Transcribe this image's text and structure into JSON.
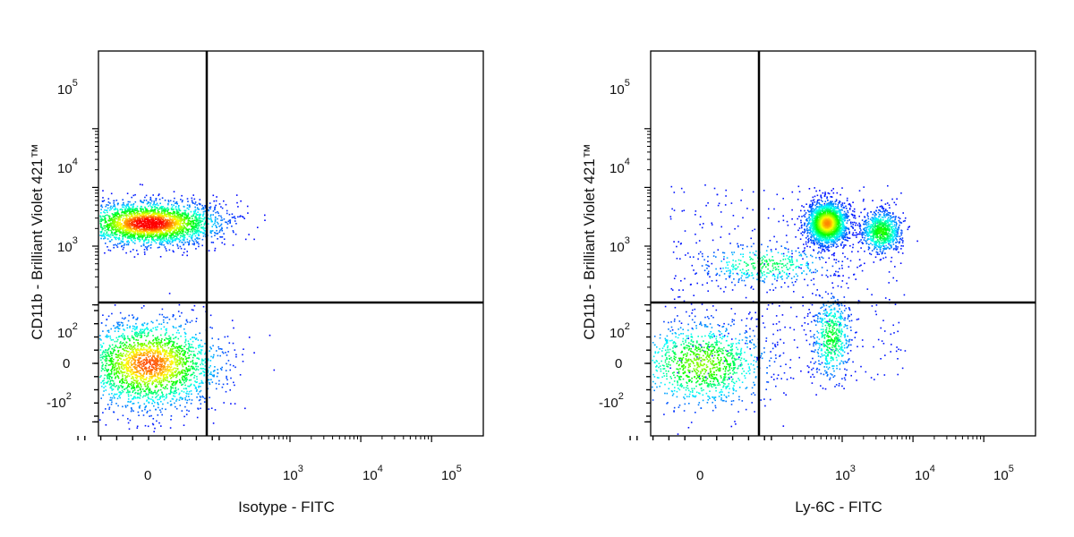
{
  "chart_data": [
    {
      "type": "scatter",
      "subtype": "flow-cytometry-density-dot-plot",
      "xlabel": "Isotype - FITC",
      "ylabel": "CD11b - Brilliant Violet 421™",
      "x_scale": "biexponential",
      "y_scale": "biexponential",
      "x_ticks": [
        "0",
        "10^3",
        "10^4",
        "10^5"
      ],
      "y_ticks": [
        "-10^2",
        "0",
        "10^2",
        "10^3",
        "10^4",
        "10^5"
      ],
      "quadrant_gate": {
        "x": 180,
        "y": 190
      },
      "grid": false,
      "color_scale": [
        "#0000ff",
        "#00ffff",
        "#00ff00",
        "#ffff00",
        "#ff0000"
      ],
      "populations": [
        {
          "x": 0,
          "y": 2500,
          "approx_fraction": 0.55
        },
        {
          "x": 0,
          "y": 0,
          "approx_fraction": 0.45
        }
      ]
    },
    {
      "type": "scatter",
      "subtype": "flow-cytometry-density-dot-plot",
      "xlabel": "Ly-6C - FITC",
      "ylabel": "CD11b - Brilliant Violet 421™",
      "x_scale": "biexponential",
      "y_scale": "biexponential",
      "x_ticks": [
        "0",
        "10^3",
        "10^4",
        "10^5"
      ],
      "y_ticks": [
        "-10^2",
        "0",
        "10^2",
        "10^3",
        "10^4",
        "10^5"
      ],
      "quadrant_gate": {
        "x": 180,
        "y": 190
      },
      "grid": false,
      "color_scale": [
        "#0000ff",
        "#00ffff",
        "#00ff00",
        "#ffff00",
        "#ff0000"
      ],
      "populations": [
        {
          "x": 600,
          "y": 2500,
          "approx_fraction": 0.4
        },
        {
          "x": 3500,
          "y": 1800,
          "approx_fraction": 0.15
        },
        {
          "x": 0,
          "y": 0,
          "approx_fraction": 0.22
        },
        {
          "x": 700,
          "y": 40,
          "approx_fraction": 0.1
        },
        {
          "x": 80,
          "y": 500,
          "approx_fraction": 0.07
        }
      ]
    }
  ]
}
